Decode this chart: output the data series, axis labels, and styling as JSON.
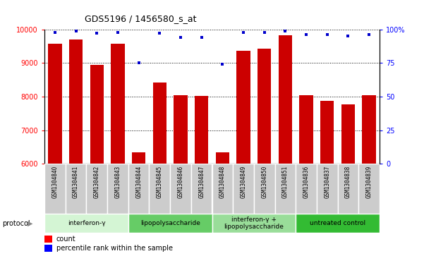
{
  "title": "GDS5196 / 1456580_s_at",
  "samples": [
    "GSM1304840",
    "GSM1304841",
    "GSM1304842",
    "GSM1304843",
    "GSM1304844",
    "GSM1304845",
    "GSM1304846",
    "GSM1304847",
    "GSM1304848",
    "GSM1304849",
    "GSM1304850",
    "GSM1304851",
    "GSM1304836",
    "GSM1304837",
    "GSM1304838",
    "GSM1304839"
  ],
  "counts": [
    9580,
    9700,
    8940,
    9580,
    6340,
    8430,
    8040,
    8020,
    6340,
    9360,
    9430,
    9820,
    8050,
    7880,
    7760,
    8050
  ],
  "percentile_ranks": [
    98,
    99,
    97,
    98,
    75,
    97,
    94,
    94,
    74,
    98,
    98,
    99,
    96,
    96,
    95,
    96
  ],
  "bar_color": "#cc0000",
  "dot_color": "#0000cc",
  "ylim_left": [
    6000,
    10000
  ],
  "ylim_right": [
    0,
    100
  ],
  "yticks_left": [
    6000,
    7000,
    8000,
    9000,
    10000
  ],
  "yticks_right": [
    0,
    25,
    50,
    75,
    100
  ],
  "ytick_right_labels": [
    "0",
    "25",
    "50",
    "75",
    "100%"
  ],
  "groups": [
    {
      "label": "interferon-γ",
      "start": 0,
      "end": 4,
      "color": "#d4f5d4"
    },
    {
      "label": "lipopolysaccharide",
      "start": 4,
      "end": 8,
      "color": "#66cc66"
    },
    {
      "label": "interferon-γ +\nlipopolysaccharide",
      "start": 8,
      "end": 12,
      "color": "#99dd99"
    },
    {
      "label": "untreated control",
      "start": 12,
      "end": 16,
      "color": "#33bb33"
    }
  ],
  "protocol_label": "protocol",
  "legend_count_label": "count",
  "legend_percentile_label": "percentile rank within the sample",
  "sample_box_color": "#cccccc",
  "sample_box_edge_color": "#ffffff"
}
